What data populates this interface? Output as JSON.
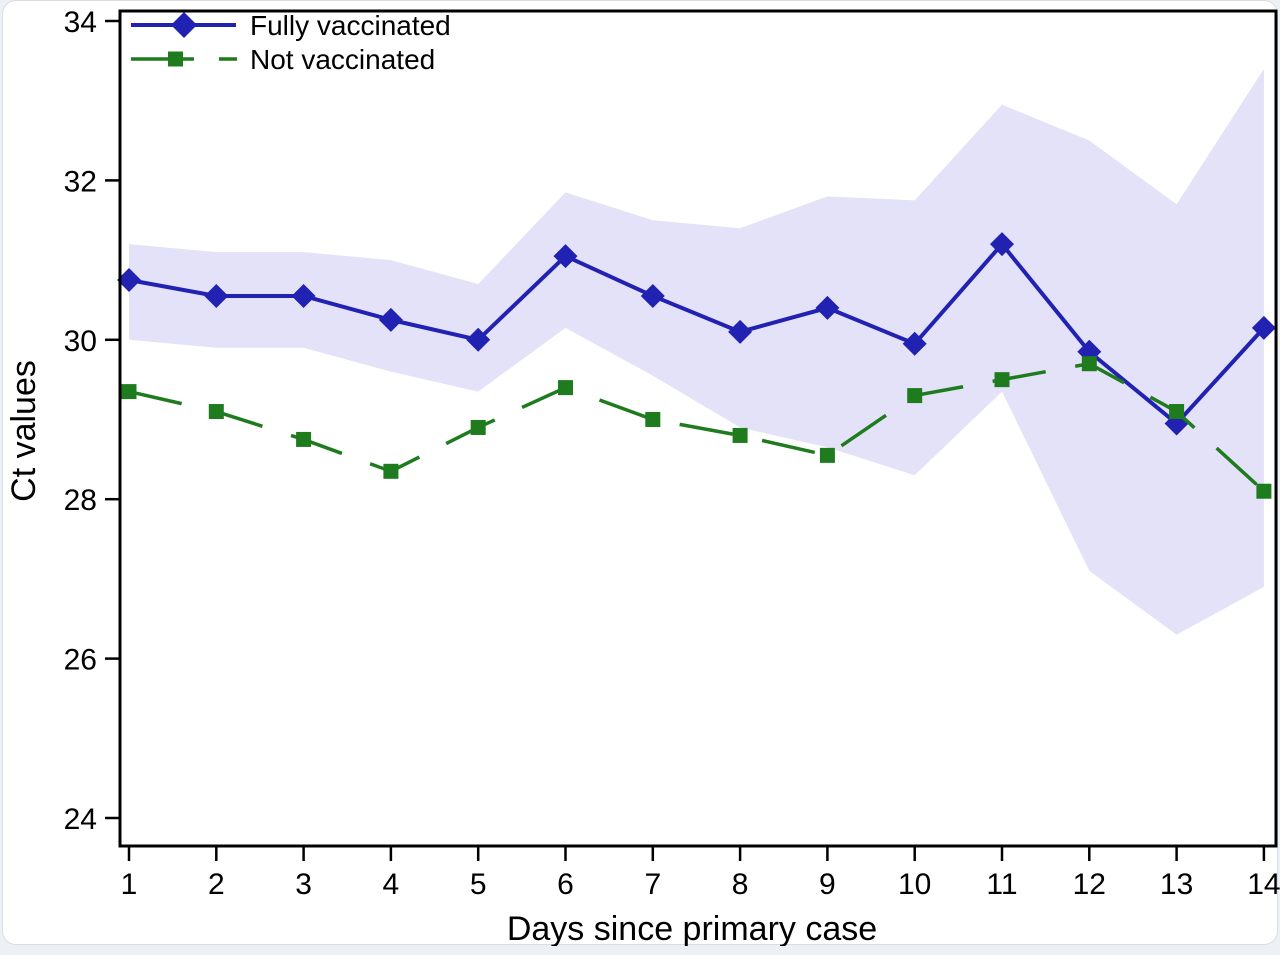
{
  "chart_data": {
    "type": "line",
    "title": "",
    "xlabel": "Days since primary case",
    "ylabel": "Ct values",
    "x_ticks": [
      1,
      2,
      3,
      4,
      5,
      6,
      7,
      8,
      9,
      10,
      11,
      12,
      13,
      14
    ],
    "y_ticks": [
      24,
      26,
      28,
      30,
      32,
      34
    ],
    "xlim": [
      0.9,
      14.15
    ],
    "ylim": [
      23.65,
      34.13
    ],
    "grid": false,
    "legend_position": "top-left-inside",
    "series": [
      {
        "name": "Fully vaccinated",
        "color": "#2121b2",
        "marker": "diamond",
        "line_style": "solid",
        "x": [
          1,
          2,
          3,
          4,
          5,
          6,
          7,
          8,
          9,
          10,
          11,
          12,
          13,
          14
        ],
        "values": [
          30.75,
          30.55,
          30.55,
          30.25,
          30.0,
          31.05,
          30.55,
          30.1,
          30.4,
          29.95,
          31.2,
          29.85,
          28.95,
          30.15
        ]
      },
      {
        "name": "Not vaccinated",
        "color": "#1e7b1e",
        "marker": "square",
        "line_style": "dashed",
        "x": [
          1,
          2,
          3,
          4,
          5,
          6,
          7,
          8,
          9,
          10,
          11,
          12,
          13,
          14
        ],
        "values": [
          29.35,
          29.1,
          28.75,
          28.35,
          28.9,
          29.4,
          29.0,
          28.8,
          28.55,
          29.3,
          29.5,
          29.7,
          29.1,
          28.1
        ]
      }
    ],
    "confidence_band": {
      "applies_to": "Fully vaccinated",
      "color": "#e4e2f8",
      "x": [
        1,
        2,
        3,
        4,
        5,
        6,
        7,
        8,
        9,
        10,
        11,
        12,
        13,
        14
      ],
      "upper": [
        31.2,
        31.1,
        31.1,
        31.0,
        30.7,
        31.85,
        31.5,
        31.4,
        31.8,
        31.75,
        32.95,
        32.5,
        31.7,
        33.4
      ],
      "lower": [
        30.0,
        29.9,
        29.9,
        29.6,
        29.35,
        30.15,
        29.55,
        28.9,
        28.65,
        28.3,
        29.35,
        27.1,
        26.3,
        26.9
      ]
    }
  }
}
